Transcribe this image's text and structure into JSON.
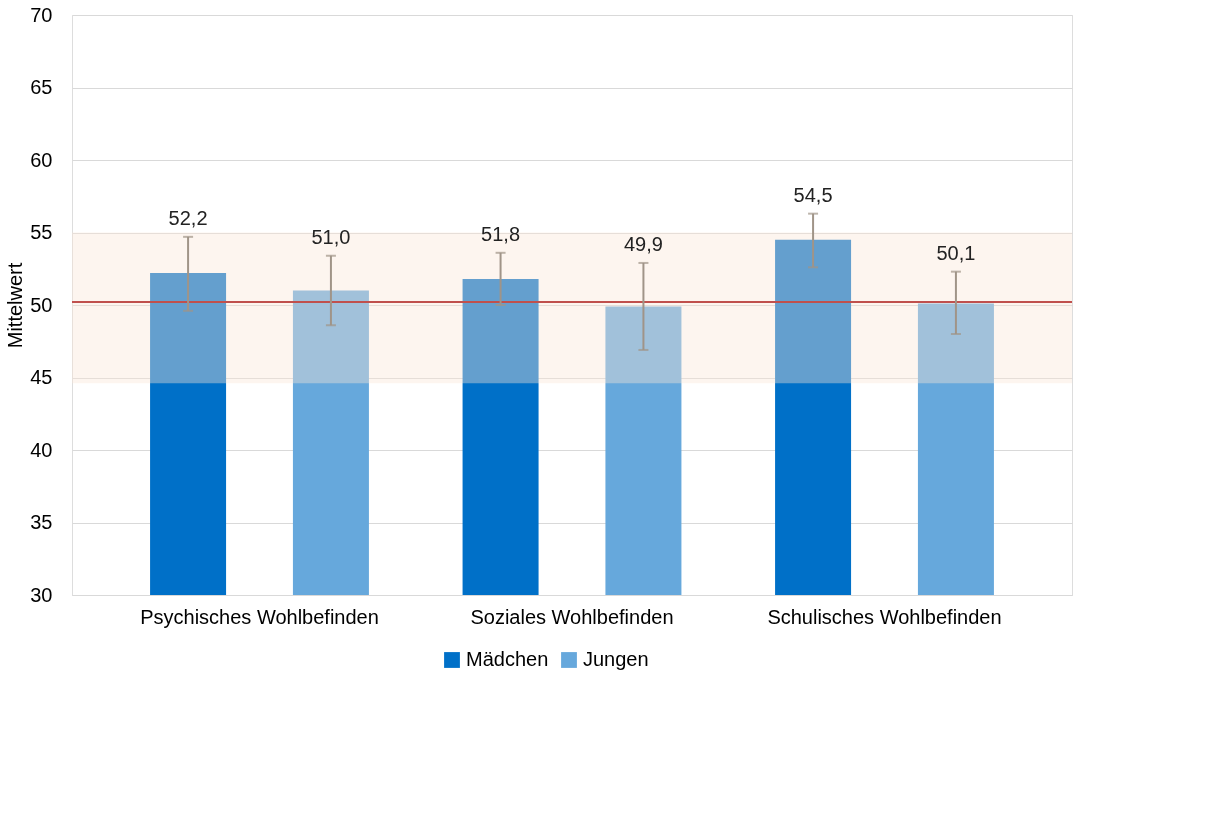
{
  "chart_data": {
    "type": "bar",
    "ylabel": "Mittelwert",
    "categories": [
      "Psychisches Wohlbefinden",
      "Soziales Wohlbefinden",
      "Schulisches Wohlbefinden"
    ],
    "series": [
      {
        "name": "Mädchen",
        "color": "#0070c8",
        "values": [
          52.2,
          51.8,
          54.5
        ],
        "value_labels": [
          "52,2",
          "51,8",
          "54,5"
        ],
        "errors": [
          [
            49.6,
            54.7
          ],
          [
            50.0,
            53.6
          ],
          [
            52.6,
            56.3
          ]
        ]
      },
      {
        "name": "Jungen",
        "color": "#66a8dc",
        "values": [
          51.0,
          49.9,
          50.1
        ],
        "value_labels": [
          "51,0",
          "49,9",
          "50,1"
        ],
        "errors": [
          [
            48.6,
            53.4
          ],
          [
            46.9,
            52.9
          ],
          [
            48.0,
            52.3
          ]
        ]
      }
    ],
    "ylim": [
      30,
      70
    ],
    "yticks": [
      30,
      35,
      40,
      45,
      50,
      55,
      60,
      65,
      70
    ],
    "ref_lines": [
      {
        "axis": "y",
        "value": 50.2,
        "color": "#c0504d"
      }
    ],
    "bands": [
      {
        "axis": "y",
        "from": 44.6,
        "to": 55.0,
        "color": "#fbe5d6"
      }
    ],
    "grid": "y",
    "legend": "bottom"
  }
}
